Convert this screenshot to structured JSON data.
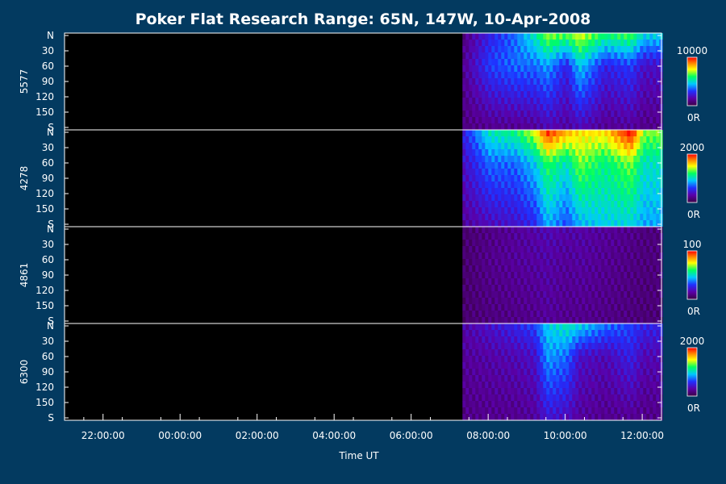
{
  "chart_data": {
    "type": "heatmap",
    "title": "Poker Flat Research Range: 65N, 147W, 10-Apr-2008",
    "xlabel": "Time UT",
    "x_ticks": [
      "22:00:00",
      "00:00:00",
      "02:00:00",
      "04:00:00",
      "06:00:00",
      "08:00:00",
      "10:00:00",
      "12:00:00"
    ],
    "y_ticks": [
      "N",
      "30",
      "60",
      "90",
      "120",
      "150",
      "S"
    ],
    "colormap": [
      "#3b0044",
      "#5a00a8",
      "#2030ff",
      "#00c8ff",
      "#00ff60",
      "#ffff00",
      "#ff8000",
      "#ff0000"
    ],
    "background_color": "#000000",
    "panels": [
      {
        "name": "5577",
        "colorbar_max": "10000",
        "colorbar_min": "0R",
        "data_start": "07:20:00",
        "data_end": "12:00:00",
        "summary": [
          {
            "time": "07:20",
            "north": 0.05,
            "mid": 0.08,
            "south": 0.04
          },
          {
            "time": "08:00",
            "north": 0.2,
            "mid": 0.25,
            "south": 0.05
          },
          {
            "time": "08:40",
            "north": 0.3,
            "mid": 0.3,
            "south": 0.05
          },
          {
            "time": "09:10",
            "north": 0.45,
            "mid": 0.3,
            "south": 0.06
          },
          {
            "time": "09:30",
            "north": 0.6,
            "mid": 0.35,
            "south": 0.1
          },
          {
            "time": "10:00",
            "north": 0.55,
            "mid": 0.2,
            "south": 0.08
          },
          {
            "time": "10:20",
            "north": 0.65,
            "mid": 0.4,
            "south": 0.1
          },
          {
            "time": "11:00",
            "north": 0.5,
            "mid": 0.2,
            "south": 0.06
          },
          {
            "time": "11:40",
            "north": 0.55,
            "mid": 0.25,
            "south": 0.07
          },
          {
            "time": "12:00",
            "north": 0.4,
            "mid": 0.15,
            "south": 0.05
          }
        ]
      },
      {
        "name": "4278",
        "colorbar_max": "2000",
        "colorbar_min": "0R",
        "data_start": "07:20:00",
        "data_end": "12:00:00",
        "summary": [
          {
            "time": "07:20",
            "north": 0.2,
            "mid": 0.15,
            "south": 0.08
          },
          {
            "time": "08:00",
            "north": 0.45,
            "mid": 0.3,
            "south": 0.12
          },
          {
            "time": "08:40",
            "north": 0.5,
            "mid": 0.3,
            "south": 0.15
          },
          {
            "time": "09:10",
            "north": 0.65,
            "mid": 0.4,
            "south": 0.2
          },
          {
            "time": "09:30",
            "north": 0.9,
            "mid": 0.55,
            "south": 0.35
          },
          {
            "time": "10:00",
            "north": 0.75,
            "mid": 0.45,
            "south": 0.25
          },
          {
            "time": "10:20",
            "north": 0.7,
            "mid": 0.6,
            "south": 0.35
          },
          {
            "time": "11:00",
            "north": 0.7,
            "mid": 0.5,
            "south": 0.4
          },
          {
            "time": "11:40",
            "north": 0.95,
            "mid": 0.6,
            "south": 0.4
          },
          {
            "time": "12:00",
            "north": 0.6,
            "mid": 0.45,
            "south": 0.35
          }
        ]
      },
      {
        "name": "4861",
        "colorbar_max": "100",
        "colorbar_min": "0R",
        "data_start": "07:20:00",
        "data_end": "12:00:00",
        "summary": [
          {
            "time": "07:20",
            "north": 0.02,
            "mid": 0.02,
            "south": 0.02
          },
          {
            "time": "08:00",
            "north": 0.05,
            "mid": 0.06,
            "south": 0.04
          },
          {
            "time": "08:40",
            "north": 0.08,
            "mid": 0.08,
            "south": 0.05
          },
          {
            "time": "09:10",
            "north": 0.1,
            "mid": 0.09,
            "south": 0.06
          },
          {
            "time": "09:30",
            "north": 0.12,
            "mid": 0.1,
            "south": 0.08
          },
          {
            "time": "10:00",
            "north": 0.1,
            "mid": 0.08,
            "south": 0.06
          },
          {
            "time": "10:20",
            "north": 0.1,
            "mid": 0.09,
            "south": 0.06
          },
          {
            "time": "11:00",
            "north": 0.08,
            "mid": 0.07,
            "south": 0.05
          },
          {
            "time": "11:40",
            "north": 0.06,
            "mid": 0.05,
            "south": 0.04
          },
          {
            "time": "12:00",
            "north": 0.04,
            "mid": 0.04,
            "south": 0.03
          }
        ]
      },
      {
        "name": "6300",
        "colorbar_max": "2000",
        "colorbar_min": "0R",
        "data_start": "07:20:00",
        "data_end": "12:00:00",
        "summary": [
          {
            "time": "07:20",
            "north": 0.1,
            "mid": 0.08,
            "south": 0.05
          },
          {
            "time": "08:00",
            "north": 0.15,
            "mid": 0.1,
            "south": 0.06
          },
          {
            "time": "08:40",
            "north": 0.2,
            "mid": 0.12,
            "south": 0.06
          },
          {
            "time": "09:10",
            "north": 0.25,
            "mid": 0.15,
            "south": 0.08
          },
          {
            "time": "09:30",
            "north": 0.4,
            "mid": 0.35,
            "south": 0.15
          },
          {
            "time": "10:00",
            "north": 0.45,
            "mid": 0.3,
            "south": 0.12
          },
          {
            "time": "10:20",
            "north": 0.4,
            "mid": 0.15,
            "south": 0.08
          },
          {
            "time": "11:00",
            "north": 0.3,
            "mid": 0.12,
            "south": 0.06
          },
          {
            "time": "11:40",
            "north": 0.25,
            "mid": 0.2,
            "south": 0.06
          },
          {
            "time": "12:00",
            "north": 0.2,
            "mid": 0.12,
            "south": 0.05
          }
        ]
      }
    ]
  }
}
